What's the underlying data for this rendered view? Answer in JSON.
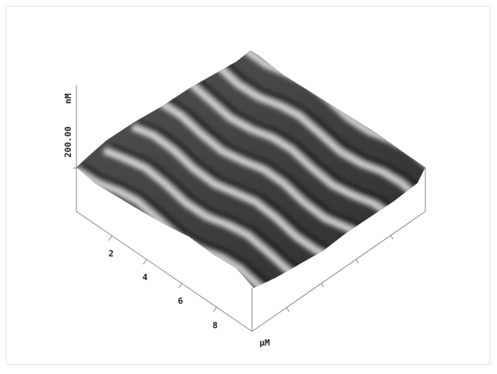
{
  "z_axis": {
    "unit": "nM",
    "max_label": "200.00"
  },
  "x_axis": {
    "ticks": [
      "2",
      "4",
      "6",
      "8"
    ],
    "unit": "µM"
  }
}
